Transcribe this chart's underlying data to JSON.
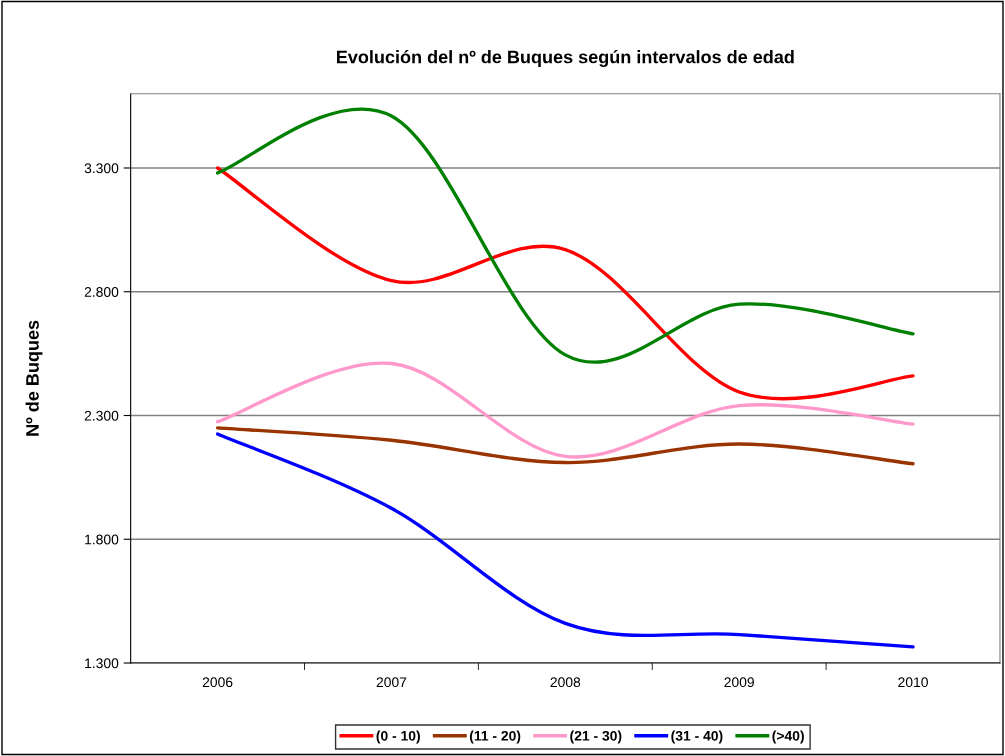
{
  "chart_data": {
    "type": "line",
    "title": "Evolución del nº de Buques según intervalos de edad",
    "ylabel": "Nº de Buques",
    "categories": [
      "2006",
      "2007",
      "2008",
      "2009",
      "2010"
    ],
    "series": [
      {
        "name": "(0 - 10)",
        "color": "#ff0000",
        "values": [
          3300,
          2845,
          2970,
          2395,
          2460
        ]
      },
      {
        "name": "(11 - 20)",
        "color": "#993300",
        "values": [
          2250,
          2200,
          2110,
          2185,
          2105
        ]
      },
      {
        "name": "(21 - 30)",
        "color": "#ff99cc",
        "values": [
          2275,
          2510,
          2135,
          2340,
          2265
        ]
      },
      {
        "name": "(31 - 40)",
        "color": "#0000ff",
        "values": [
          2225,
          1925,
          1460,
          1415,
          1365
        ]
      },
      {
        "name": "(>40)",
        "color": "#008000",
        "values": [
          3280,
          3510,
          2545,
          2750,
          2630
        ]
      }
    ],
    "ylim": [
      1300,
      3600
    ],
    "yticks": [
      {
        "value": 1300,
        "label": "1.300"
      },
      {
        "value": 1800,
        "label": "1.800"
      },
      {
        "value": 2300,
        "label": "2.300"
      },
      {
        "value": 2800,
        "label": "2.800"
      },
      {
        "value": 3300,
        "label": "3.300"
      }
    ],
    "grid": "y",
    "legend": "bottom",
    "marker": "none",
    "line_style": "solid"
  }
}
